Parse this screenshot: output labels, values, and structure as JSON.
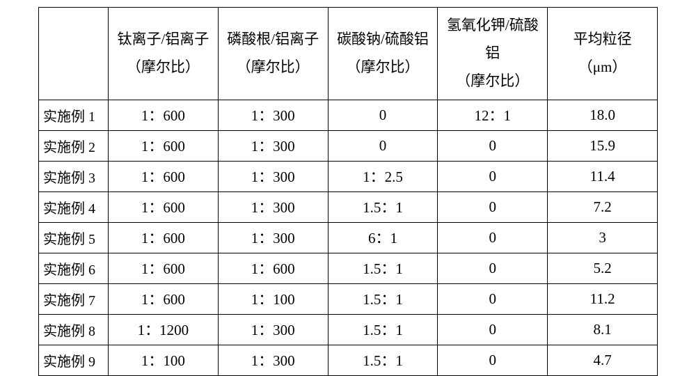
{
  "table": {
    "columns": [
      {
        "line1": "钛离子/铝离子",
        "line2": "（摩尔比）"
      },
      {
        "line1": "磷酸根/铝离子",
        "line2": "（摩尔比）"
      },
      {
        "line1": "碳酸钠/硫酸铝",
        "line2": "（摩尔比）"
      },
      {
        "line1": "氢氧化钾/硫酸铝",
        "line2": "（摩尔比）"
      },
      {
        "line1": "平均粒径",
        "line2": "（μm）"
      }
    ],
    "rows": [
      {
        "label": "实施例 1",
        "cells": [
          "1：600",
          "1：300",
          "0",
          "12：1",
          "18.0"
        ]
      },
      {
        "label": "实施例 2",
        "cells": [
          "1：600",
          "1：300",
          "0",
          "0",
          "15.9"
        ]
      },
      {
        "label": "实施例 3",
        "cells": [
          "1：600",
          "1：300",
          "1：2.5",
          "0",
          "11.4"
        ]
      },
      {
        "label": "实施例 4",
        "cells": [
          "1：600",
          "1：300",
          "1.5：1",
          "0",
          "7.2"
        ]
      },
      {
        "label": "实施例 5",
        "cells": [
          "1：600",
          "1：300",
          "6：1",
          "0",
          "3"
        ]
      },
      {
        "label": "实施例 6",
        "cells": [
          "1：600",
          "1：600",
          "1.5：1",
          "0",
          "5.2"
        ]
      },
      {
        "label": "实施例 7",
        "cells": [
          "1：600",
          "1：100",
          "1.5：1",
          "0",
          "11.2"
        ]
      },
      {
        "label": "实施例 8",
        "cells": [
          "1：1200",
          "1：300",
          "1.5：1",
          "0",
          "8.1"
        ]
      },
      {
        "label": "实施例 9",
        "cells": [
          "1：100",
          "1：300",
          "1.5：1",
          "0",
          "4.7"
        ]
      }
    ]
  }
}
